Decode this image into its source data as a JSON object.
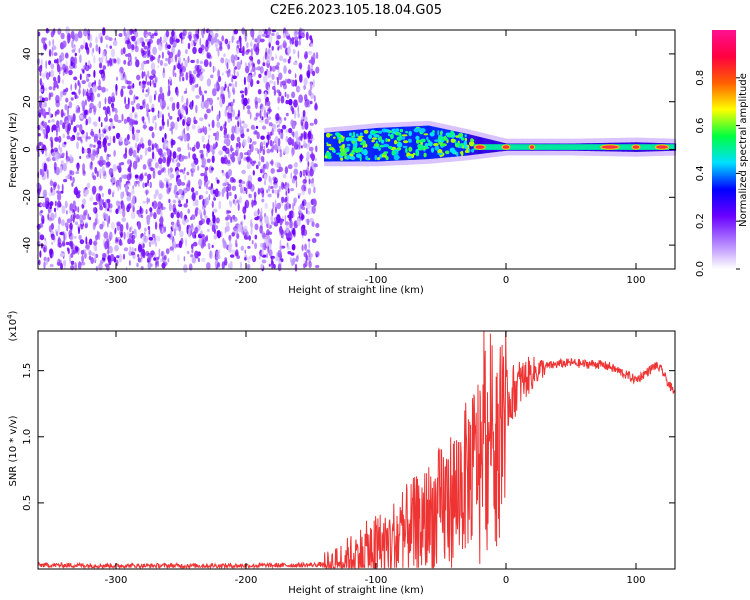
{
  "title": "C2E6.2023.105.18.04.G05",
  "chart_data": [
    {
      "type": "heatmap",
      "xlabel": "Height of straight line (km)",
      "ylabel": "Frequency (Hz)",
      "xlim": [
        -360,
        130
      ],
      "ylim": [
        -50,
        50
      ],
      "xticks": [
        -300,
        -200,
        -100,
        0,
        100
      ],
      "yticks": [
        -40,
        -20,
        0,
        20,
        40
      ],
      "noise_region": {
        "x_range": [
          -360,
          -145
        ],
        "description": "purple noise speckle"
      },
      "spectral_band": [
        {
          "x": -140,
          "center_hz": 1,
          "width_hz": 12
        },
        {
          "x": -100,
          "center_hz": 2,
          "width_hz": 14
        },
        {
          "x": -60,
          "center_hz": 3,
          "width_hz": 14
        },
        {
          "x": -30,
          "center_hz": 2,
          "width_hz": 9
        },
        {
          "x": 0,
          "center_hz": 1,
          "width_hz": 3
        },
        {
          "x": 50,
          "center_hz": 1,
          "width_hz": 3
        },
        {
          "x": 100,
          "center_hz": 1,
          "width_hz": 4
        },
        {
          "x": 130,
          "center_hz": 1,
          "width_hz": 3
        }
      ],
      "colorbar": {
        "label": "Normalized spectral amplitude",
        "range": [
          0,
          1
        ],
        "ticks": [
          0.0,
          0.2,
          0.4,
          0.6,
          0.8
        ],
        "tick_labels": [
          "0.0",
          "0.2",
          "0.4",
          "0.6",
          "0.8"
        ],
        "colors": [
          "#ffffff",
          "#b080ff",
          "#6a00ff",
          "#0000ff",
          "#00e0ff",
          "#00ff40",
          "#ffff00",
          "#ff6000",
          "#ff0040",
          "#ff1090"
        ]
      }
    },
    {
      "type": "line",
      "xlabel": "Height of straight line (km)",
      "ylabel": "SNR (10 * v/v)",
      "yscale_label": "(x10",
      "yscale_exp": "4",
      "yscale_close": ")",
      "xlim": [
        -360,
        130
      ],
      "ylim": [
        0,
        18000
      ],
      "xticks": [
        -300,
        -200,
        -100,
        0,
        100
      ],
      "yticks": [
        5000,
        10000,
        15000
      ],
      "ytick_labels": [
        "0.5",
        "1.0",
        "1.5"
      ],
      "color": "#ee3333",
      "series": [
        {
          "name": "SNR",
          "x": [
            -360,
            -300,
            -250,
            -200,
            -150,
            -130,
            -120,
            -110,
            -100,
            -90,
            -80,
            -70,
            -60,
            -50,
            -40,
            -30,
            -25,
            -20,
            -15,
            -10,
            -5,
            0,
            10,
            20,
            30,
            40,
            50,
            60,
            70,
            80,
            90,
            100,
            110,
            115,
            120,
            125,
            130
          ],
          "y": [
            300,
            250,
            250,
            250,
            300,
            400,
            800,
            1200,
            1500,
            1800,
            2500,
            3000,
            3600,
            4500,
            5500,
            7000,
            8000,
            9000,
            9500,
            10500,
            11500,
            12500,
            14000,
            14800,
            15300,
            15500,
            15600,
            15500,
            15500,
            15300,
            14800,
            14300,
            15000,
            15400,
            15000,
            14000,
            13200
          ]
        },
        {
          "name": "SNR spikes",
          "x": [
            -17,
            -16,
            -12,
            -8,
            -20,
            -6
          ],
          "y": [
            18000,
            16500,
            17800,
            11000,
            13500,
            12500
          ]
        }
      ]
    }
  ]
}
